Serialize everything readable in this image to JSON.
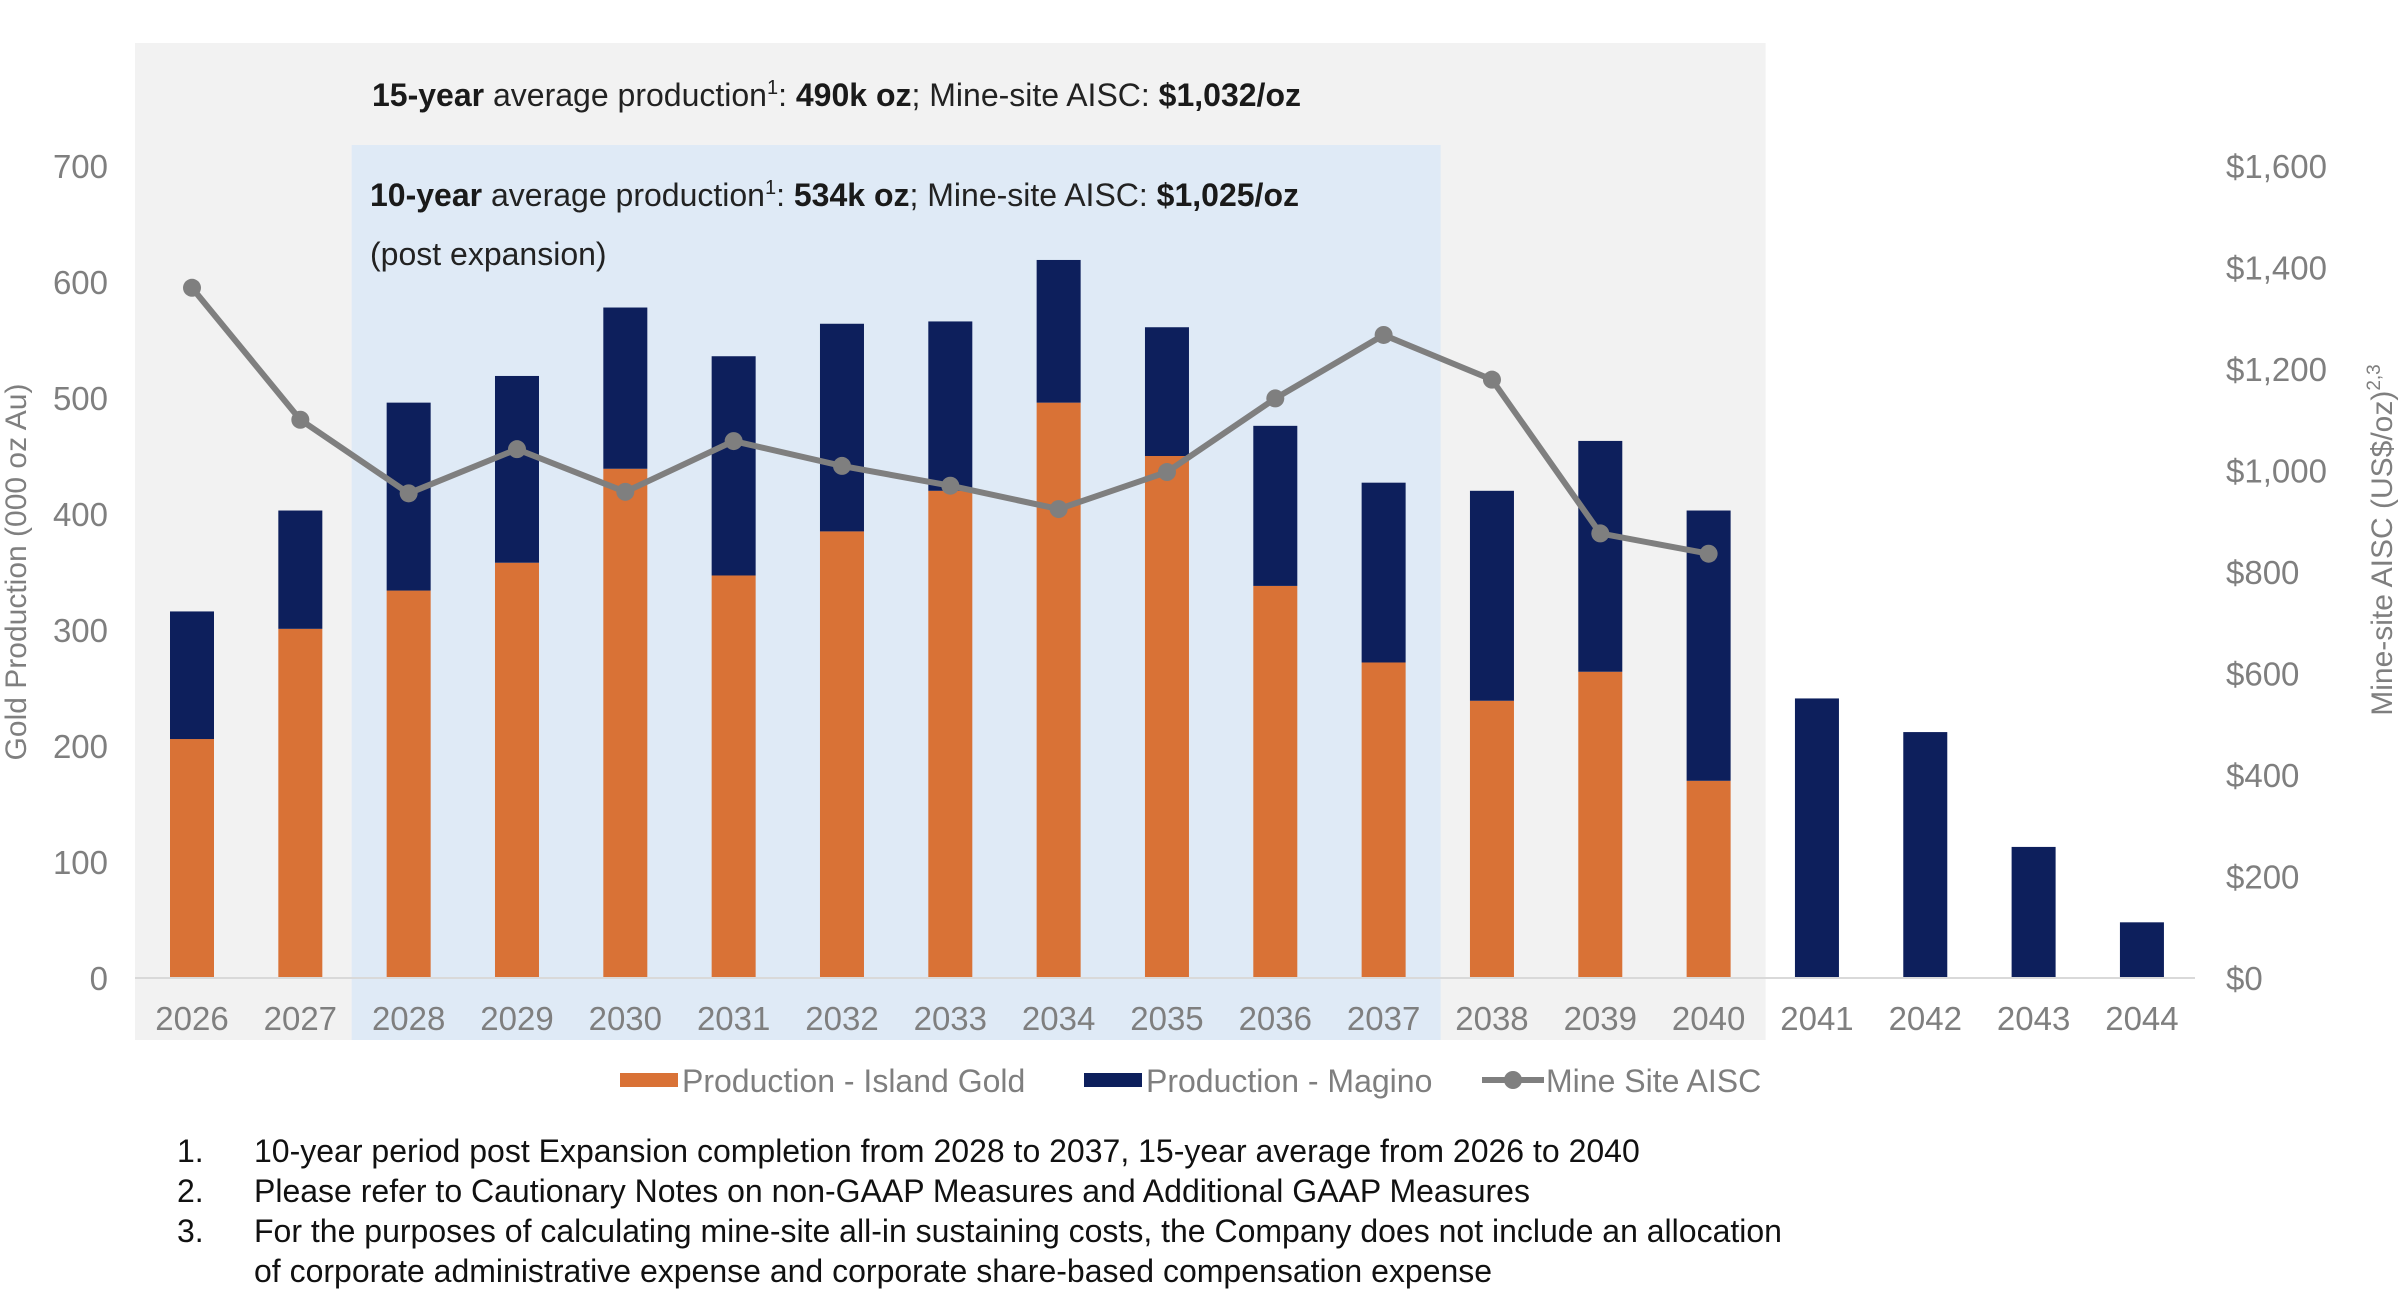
{
  "chart_data": {
    "type": "bar",
    "stacked": true,
    "categories": [
      "2026",
      "2027",
      "2028",
      "2029",
      "2030",
      "2031",
      "2032",
      "2033",
      "2034",
      "2035",
      "2036",
      "2037",
      "2038",
      "2039",
      "2040",
      "2041",
      "2042",
      "2043",
      "2044"
    ],
    "series": [
      {
        "name": "Production - Island Gold",
        "type": "bar",
        "axis": "left",
        "color": "#d97236",
        "values": [
          206,
          301,
          334,
          358,
          439,
          347,
          385,
          420,
          496,
          450,
          338,
          272,
          239,
          264,
          170,
          0,
          0,
          0,
          0
        ]
      },
      {
        "name": "Production - Magino",
        "type": "bar",
        "axis": "left",
        "color": "#0d1f5c",
        "values": [
          110,
          102,
          162,
          161,
          139,
          189,
          179,
          146,
          123,
          111,
          138,
          155,
          181,
          199,
          233,
          241,
          212,
          113,
          48
        ]
      },
      {
        "name": "Mine Site AISC",
        "type": "line",
        "axis": "right",
        "color": "#7f7f7f",
        "values": [
          1360,
          1100,
          955,
          1042,
          958,
          1058,
          1009,
          970,
          924,
          997,
          1142,
          1267,
          1179,
          876,
          836,
          null,
          null,
          null,
          null
        ]
      }
    ],
    "ylabel": "Gold Production (000 oz Au)",
    "ylim": [
      0,
      700
    ],
    "yticks": [
      "0",
      "100",
      "200",
      "300",
      "400",
      "500",
      "600",
      "700"
    ],
    "y2label": "Mine-site AISC (US$/oz)",
    "y2label_sup": "2,3",
    "y2lim": [
      0,
      1600
    ],
    "y2ticks": [
      "$0",
      "$200",
      "$400",
      "$600",
      "$800",
      "$1,000",
      "$1,200",
      "$1,400",
      "$1,600"
    ],
    "legend_placement": "bottom",
    "grid": false,
    "shaded_regions": [
      {
        "from": "2026",
        "to": "2040",
        "color": "#f2f2f2"
      },
      {
        "from": "2028",
        "to": "2037",
        "color": "#dfeaf6"
      }
    ],
    "annotations": {
      "fifteen": {
        "bold1": "15-year",
        "text1": " average production",
        "sup": "1",
        "text2": ": ",
        "bold2": "490k oz",
        "text3": "; Mine-site AISC: ",
        "bold3": "$1,032/oz"
      },
      "ten": {
        "bold1": "10-year",
        "text1": " average production",
        "sup": "1",
        "text2": ": ",
        "bold2": "534k oz",
        "text3": "; Mine-site AISC: ",
        "bold3": "$1,025/oz"
      },
      "ten_sub": "(post expansion)"
    }
  },
  "footnotes": [
    {
      "num": "1.",
      "lines": [
        "10-year period post Expansion completion from 2028 to 2037, 15-year average from 2026 to 2040"
      ]
    },
    {
      "num": "2.",
      "lines": [
        "Please refer to Cautionary Notes on non-GAAP Measures and Additional GAAP Measures"
      ]
    },
    {
      "num": "3.",
      "lines": [
        "For the purposes of calculating mine-site all-in sustaining costs, the Company does not include an allocation",
        "of corporate administrative expense and corporate share-based compensation expense"
      ]
    }
  ]
}
